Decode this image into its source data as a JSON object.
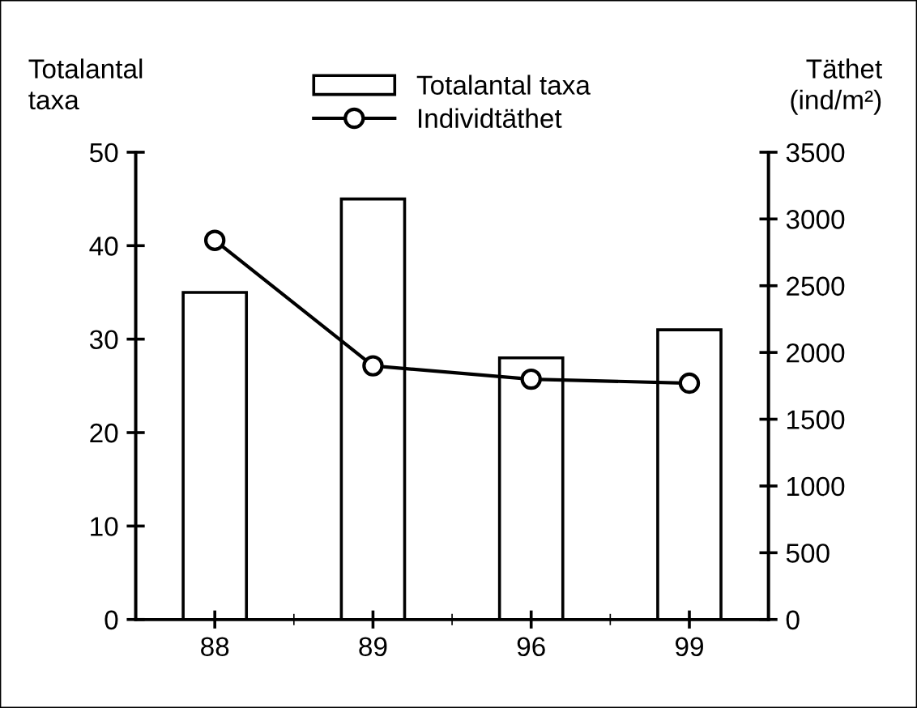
{
  "chart_data": {
    "type": "bar",
    "categories": [
      "88",
      "89",
      "96",
      "99"
    ],
    "ylabel": "Totalantal\ntaxa",
    "y2label": "Täthet\n(ind/m²)",
    "series": [
      {
        "name": "Totalantal taxa",
        "color": "#ffffff",
        "values": [
          35,
          45,
          28,
          31
        ]
      },
      {
        "name": "Individtäthet",
        "type": "line",
        "axis": "y2",
        "color": "#000000",
        "marker": "circle",
        "values": [
          2840,
          1900,
          1800,
          1770
        ]
      }
    ],
    "ylim": [
      0,
      50
    ],
    "yticks": [
      0,
      10,
      20,
      30,
      40,
      50
    ],
    "y2lim": [
      0,
      3500
    ],
    "y2ticks": [
      0,
      500,
      1000,
      1500,
      2000,
      2500,
      3000,
      3500
    ],
    "grid": false,
    "legend": "top"
  }
}
